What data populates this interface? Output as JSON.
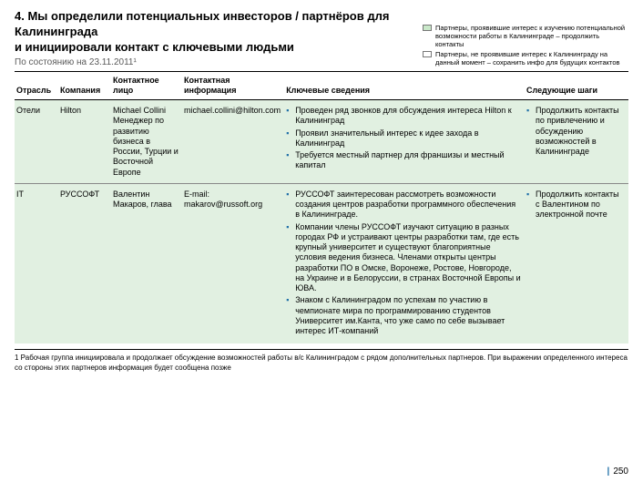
{
  "title_line1": "4. Мы определили потенциальных инвесторов / партнёров для Калининграда",
  "title_line2": "и инициировали контакт с ключевыми людьми",
  "date_line": "По состоянию на 23.11.2011¹",
  "legend": {
    "green": "Партнеры, проявившие интерес к изучению потенциальной возможности работы в Калининграде – продолжить контакты",
    "white": "Партнеры, не проявившие интерес к Калининграду на данный момент – сохранить инфо для будущих контактов"
  },
  "columns": {
    "sector": "Отрасль",
    "company": "Компания",
    "contact": "Контактное лицо",
    "info": "Контактная информация",
    "key": "Ключевые сведения",
    "next": "Следующие шаги"
  },
  "rows": [
    {
      "sector": "Отели",
      "company": "Hilton",
      "contact": "Michael Collini Менеджер по развитию бизнеса в России, Турции и Восточной Европе",
      "info": "michael.collini@hilton.com",
      "key": [
        "Проведен ряд звонков для обсуждения интереса Hilton к Калининград",
        "Проявил значительный интерес к идее захода в Калининград",
        "Требуется местный партнер для франшизы и местный капитал"
      ],
      "next": [
        "Продолжить контакты по привлечению и обсуждению возможностей в Калининграде"
      ]
    },
    {
      "sector": "IT",
      "company": "РУССОФТ",
      "contact": "Валентин Макаров, глава",
      "info": "E-mail: makarov@russoft.org",
      "key": [
        "РУССОФТ заинтересован рассмотреть возможности создания центров разработки программного обеспечения в Калининграде.",
        "Компании члены РУССОФТ изучают ситуацию в разных городах РФ и устраивают центры разработки там, где есть крупный университет и существуют благоприятные условия ведения бизнеса. Членами открыты центры разработки ПО в Омске, Воронеже, Ростове, Новгороде, на Украине и в Белоруссии, в странах Восточной Европы и ЮВА.",
        "Знаком с Калининградом по успехам по участию в чемпионате мира по программированию студентов Университет им.Канта, что уже само по себе вызывает интерес ИТ-компаний"
      ],
      "next": [
        "Продолжить контакты с Валентином по электронной почте"
      ]
    }
  ],
  "footnote": "1 Рабочая группа инициировала и продолжает обсуждение возможностей работы в/с Калининградом с рядом дополнительных партнеров. При выражении определенного интереса со стороны этих партнеров информация будет сообщена позже",
  "page_number": "250"
}
